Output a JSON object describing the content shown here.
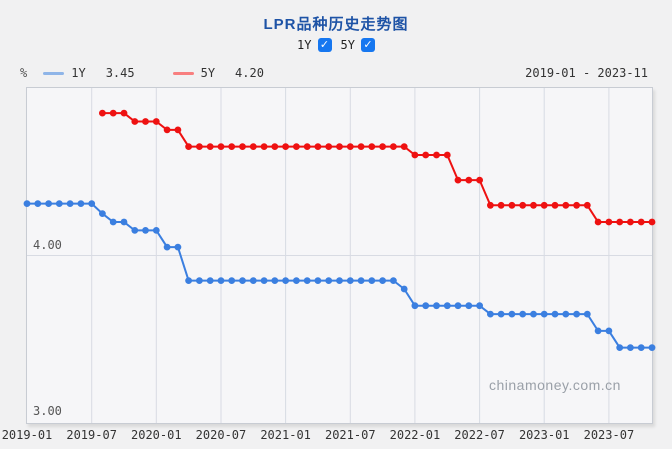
{
  "header": {
    "title": "LPR品种历史走势图",
    "date_range": "2019-01 - 2023-11",
    "check_glyph": "✓",
    "toggles": [
      {
        "label": "1Y",
        "checked": true
      },
      {
        "label": "5Y",
        "checked": true
      }
    ]
  },
  "legend": {
    "items": [
      {
        "label": "1Y",
        "latest_value": "3.45",
        "color": "#8fb5e8"
      },
      {
        "label": "5Y",
        "latest_value": "4.20",
        "color": "#f87f7f"
      }
    ]
  },
  "watermark": "chinamoney.com.cn",
  "colors": {
    "series_1y": "#3b7fe0",
    "series_5y": "#ee1111",
    "title_blue": "#1e53a6",
    "checkbox_blue": "#1677f0",
    "gridline": "#d8dbe3",
    "plot_background": "#f6f6f8",
    "page_background": "#f1f1f2"
  },
  "chart_data": {
    "type": "line",
    "title": "LPR品种历史走势图",
    "y_unit": "%",
    "x_start": "2019-01",
    "x_end": "2023-11",
    "ylim": [
      3.0,
      5.0
    ],
    "months_span": 58,
    "y_tick_labels": [
      "4.00",
      "3.00"
    ],
    "y_internal_grid": [
      4.0
    ],
    "grid": true,
    "legend_position": "top-left",
    "x_ticks": [
      {
        "label": "2019-01",
        "m": 0
      },
      {
        "label": "2019-07",
        "m": 6
      },
      {
        "label": "2020-01",
        "m": 12
      },
      {
        "label": "2020-07",
        "m": 18
      },
      {
        "label": "2021-01",
        "m": 24
      },
      {
        "label": "2021-07",
        "m": 30
      },
      {
        "label": "2022-01",
        "m": 36
      },
      {
        "label": "2022-07",
        "m": 42
      },
      {
        "label": "2023-01",
        "m": 48
      },
      {
        "label": "2023-07",
        "m": 54
      }
    ],
    "series": [
      {
        "name": "1Y",
        "color": "#3b7fe0",
        "start_m": 0,
        "start_month": "2019-01",
        "values": [
          4.31,
          4.31,
          4.31,
          4.31,
          4.31,
          4.31,
          4.31,
          4.25,
          4.2,
          4.2,
          4.15,
          4.15,
          4.15,
          4.05,
          4.05,
          3.85,
          3.85,
          3.85,
          3.85,
          3.85,
          3.85,
          3.85,
          3.85,
          3.85,
          3.85,
          3.85,
          3.85,
          3.85,
          3.85,
          3.85,
          3.85,
          3.85,
          3.85,
          3.85,
          3.85,
          3.8,
          3.7,
          3.7,
          3.7,
          3.7,
          3.7,
          3.7,
          3.7,
          3.65,
          3.65,
          3.65,
          3.65,
          3.65,
          3.65,
          3.65,
          3.65,
          3.65,
          3.65,
          3.55,
          3.55,
          3.45,
          3.45,
          3.45,
          3.45
        ]
      },
      {
        "name": "5Y",
        "color": "#ee1111",
        "start_m": 7,
        "start_month": "2019-08",
        "values": [
          4.85,
          4.85,
          4.85,
          4.8,
          4.8,
          4.8,
          4.75,
          4.75,
          4.65,
          4.65,
          4.65,
          4.65,
          4.65,
          4.65,
          4.65,
          4.65,
          4.65,
          4.65,
          4.65,
          4.65,
          4.65,
          4.65,
          4.65,
          4.65,
          4.65,
          4.65,
          4.65,
          4.65,
          4.65,
          4.6,
          4.6,
          4.6,
          4.6,
          4.45,
          4.45,
          4.45,
          4.3,
          4.3,
          4.3,
          4.3,
          4.3,
          4.3,
          4.3,
          4.3,
          4.3,
          4.3,
          4.2,
          4.2,
          4.2,
          4.2,
          4.2,
          4.2
        ]
      }
    ]
  }
}
